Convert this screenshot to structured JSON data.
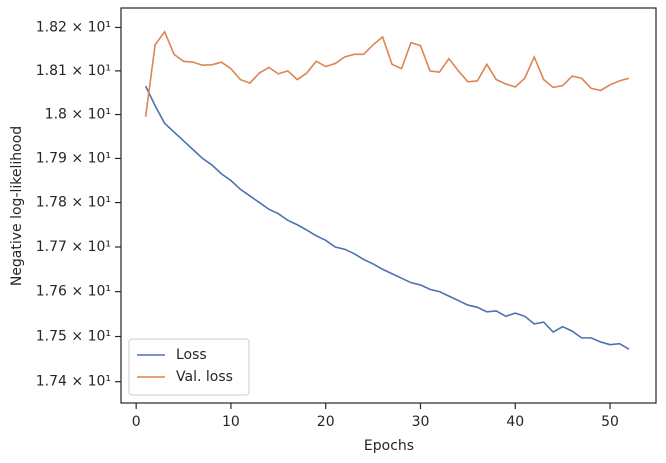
{
  "chart_data": {
    "type": "line",
    "xlabel": "Epochs",
    "ylabel": "Negative log-likelihood",
    "x": [
      1,
      2,
      3,
      4,
      5,
      6,
      7,
      8,
      9,
      10,
      11,
      12,
      13,
      14,
      15,
      16,
      17,
      18,
      19,
      20,
      21,
      22,
      23,
      24,
      25,
      26,
      27,
      28,
      29,
      30,
      31,
      32,
      33,
      34,
      35,
      36,
      37,
      38,
      39,
      40,
      41,
      42,
      43,
      44,
      45,
      46,
      47,
      48,
      49,
      50,
      51,
      52
    ],
    "series": [
      {
        "name": "Loss",
        "color": "#4c72b0",
        "values": [
          18.065,
          18.02,
          17.98,
          17.96,
          17.94,
          17.92,
          17.9,
          17.885,
          17.865,
          17.85,
          17.83,
          17.815,
          17.8,
          17.785,
          17.775,
          17.76,
          17.75,
          17.738,
          17.725,
          17.715,
          17.7,
          17.695,
          17.685,
          17.672,
          17.662,
          17.65,
          17.64,
          17.63,
          17.62,
          17.615,
          17.605,
          17.6,
          17.59,
          17.58,
          17.57,
          17.565,
          17.555,
          17.557,
          17.545,
          17.552,
          17.545,
          17.528,
          17.532,
          17.51,
          17.522,
          17.512,
          17.497,
          17.497,
          17.488,
          17.482,
          17.484,
          17.472
        ]
      },
      {
        "name": "Val. loss",
        "color": "#dd8452",
        "values": [
          17.995,
          18.16,
          18.19,
          18.138,
          18.122,
          18.12,
          18.113,
          18.114,
          18.12,
          18.105,
          18.08,
          18.072,
          18.095,
          18.108,
          18.093,
          18.1,
          18.08,
          18.095,
          18.122,
          18.11,
          18.117,
          18.132,
          18.138,
          18.138,
          18.16,
          18.178,
          18.115,
          18.105,
          18.165,
          18.158,
          18.1,
          18.097,
          18.128,
          18.1,
          18.075,
          18.077,
          18.115,
          18.08,
          18.07,
          18.063,
          18.083,
          18.132,
          18.08,
          18.062,
          18.066,
          18.088,
          18.083,
          18.06,
          18.055,
          18.068,
          18.077,
          18.083
        ]
      }
    ],
    "xlim": [
      -1.6,
      54.85
    ],
    "xticks": [
      0,
      10,
      20,
      30,
      40,
      50
    ],
    "ylim": [
      17.353,
      18.245
    ],
    "ylog": true,
    "yticks": [
      {
        "value": 17.4,
        "label": "1.74 × 10¹"
      },
      {
        "value": 17.5,
        "label": "1.75 × 10¹"
      },
      {
        "value": 17.6,
        "label": "1.76 × 10¹"
      },
      {
        "value": 17.7,
        "label": "1.77 × 10¹"
      },
      {
        "value": 17.8,
        "label": "1.78 × 10¹"
      },
      {
        "value": 17.9,
        "label": "1.79 × 10¹"
      },
      {
        "value": 18.0,
        "label": "1.8 × 10¹"
      },
      {
        "value": 18.1,
        "label": "1.81 × 10¹"
      },
      {
        "value": 18.2,
        "label": "1.82 × 10¹"
      }
    ],
    "legend": "lower left",
    "grid": false
  }
}
